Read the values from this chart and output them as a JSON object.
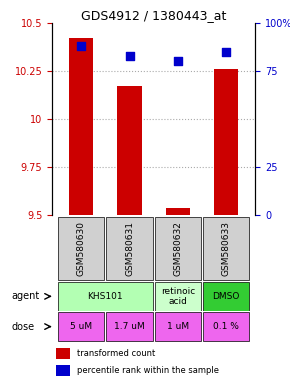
{
  "title": "GDS4912 / 1380443_at",
  "samples": [
    "GSM580630",
    "GSM580631",
    "GSM580632",
    "GSM580633"
  ],
  "bar_values": [
    10.42,
    10.17,
    9.54,
    10.26
  ],
  "bar_base": 9.5,
  "blue_values": [
    88,
    83,
    80,
    85
  ],
  "ylim_left": [
    9.5,
    10.5
  ],
  "ylim_right": [
    0,
    100
  ],
  "yticks_left": [
    9.5,
    9.75,
    10.0,
    10.25,
    10.5
  ],
  "ytick_labels_left": [
    "9.5",
    "9.75",
    "10",
    "10.25",
    "10.5"
  ],
  "yticks_right": [
    0,
    25,
    75,
    100
  ],
  "ytick_labels_right": [
    "0",
    "25",
    "75",
    "100%"
  ],
  "agent_colors": [
    "#b3ffb3",
    "#b3ffb3",
    "#ccffcc",
    "#33cc33"
  ],
  "dose_labels": [
    "5 uM",
    "1.7 uM",
    "1 uM",
    "0.1 %"
  ],
  "dose_color": "#ee66ee",
  "bar_color": "#cc0000",
  "blue_color": "#0000cc",
  "grid_color": "#aaaaaa",
  "sample_bg": "#d0d0d0",
  "background": "#ffffff"
}
